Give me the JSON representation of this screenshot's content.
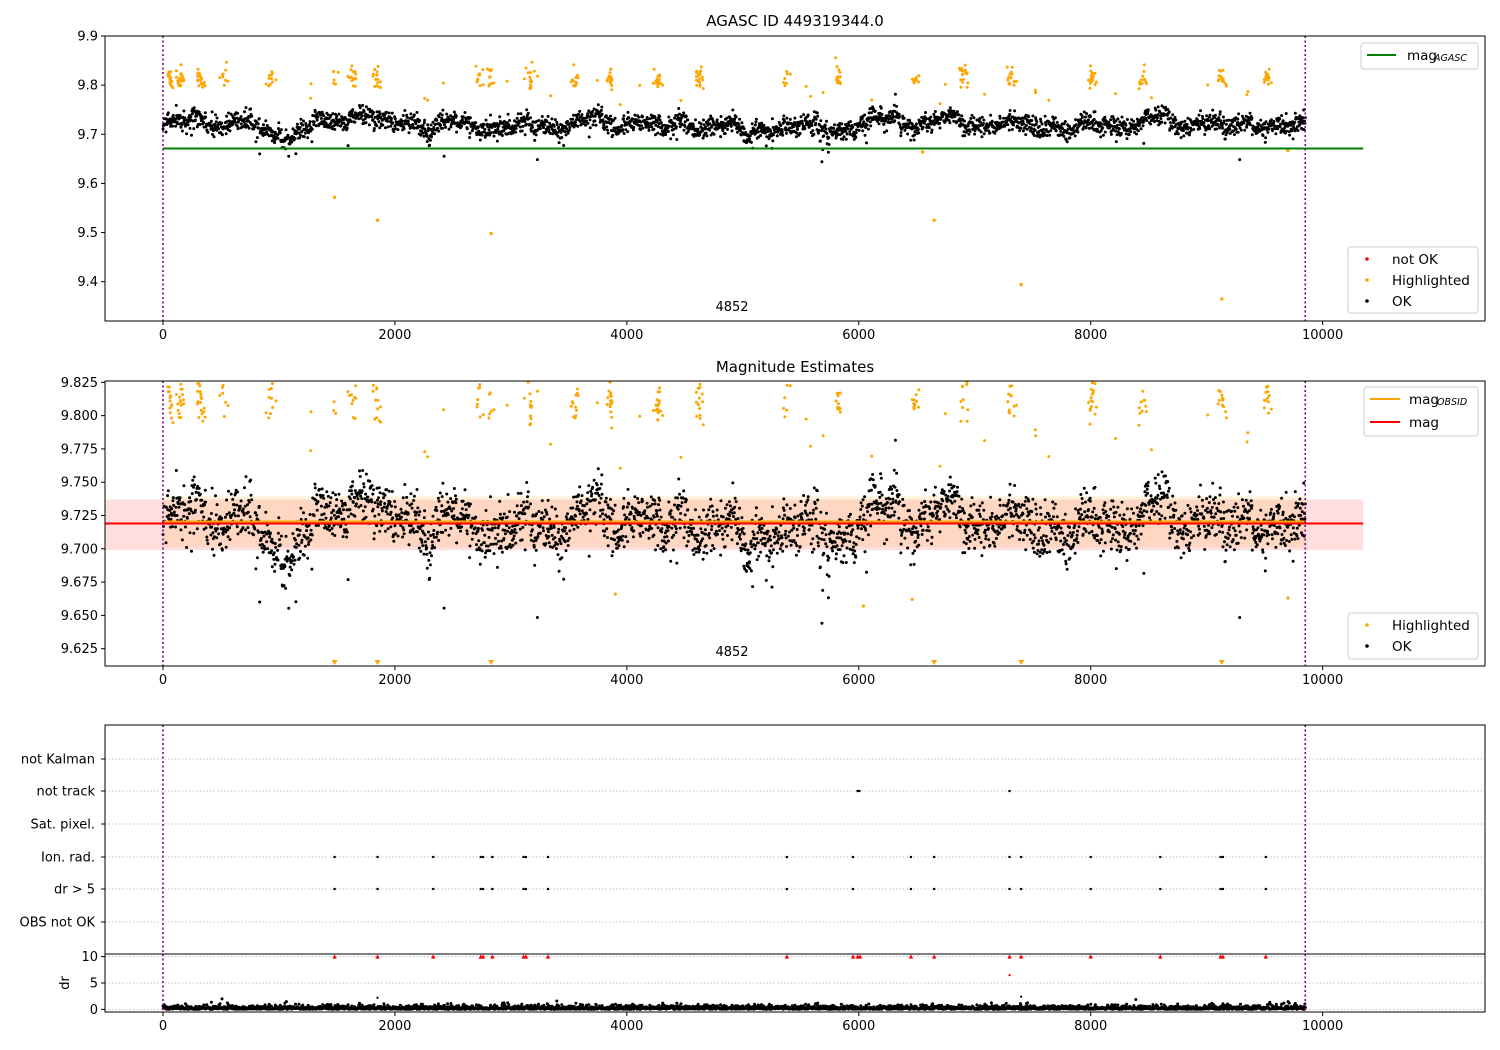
{
  "chart_data": [
    {
      "type": "scatter",
      "title": "AGASC ID 449319344.0",
      "xlim": [
        -500,
        11400
      ],
      "ylim": [
        9.32,
        9.9
      ],
      "xticks": [
        0,
        2000,
        4000,
        6000,
        8000,
        10000
      ],
      "xtick_labels": [
        "0",
        "2000",
        "4000",
        "6000",
        "8000",
        "10000"
      ],
      "yticks": [
        9.4,
        9.5,
        9.6,
        9.7,
        9.8,
        9.9
      ],
      "ytick_labels": [
        "9.4",
        "9.5",
        "9.6",
        "9.7",
        "9.8",
        "9.9"
      ],
      "obsid_boundaries": [
        0,
        9850
      ],
      "obsid_label": "4852",
      "reference_line": {
        "name": "mag",
        "subscript": "AGASC",
        "y": 9.671,
        "x_range": [
          0,
          10350
        ],
        "color": "#008000"
      },
      "series": [
        {
          "name": "not OK",
          "color": "#ff0000",
          "points": []
        },
        {
          "name": "Highlighted",
          "color": "#ffa500",
          "points": [
            [
              1480,
              9.572
            ],
            [
              1850,
              9.525
            ],
            [
              2830,
              9.498
            ],
            [
              6650,
              9.525
            ],
            [
              7400,
              9.394
            ],
            [
              9130,
              9.365
            ],
            [
              6550,
              9.664
            ],
            [
              9700,
              9.667
            ]
          ]
        },
        {
          "name": "OK",
          "color": "#000000",
          "points": []
        }
      ],
      "legend_upper": {
        "position": "top-right",
        "entries": [
          "mag"
        ]
      },
      "legend_lower": {
        "position": "lower-right",
        "entries": [
          "not OK",
          "Highlighted",
          "OK"
        ]
      }
    },
    {
      "type": "scatter",
      "title": "Magnitude Estimates",
      "xlim": [
        -500,
        11400
      ],
      "ylim": [
        9.612,
        9.826
      ],
      "xticks": [
        0,
        2000,
        4000,
        6000,
        8000,
        10000
      ],
      "xtick_labels": [
        "0",
        "2000",
        "4000",
        "6000",
        "8000",
        "10000"
      ],
      "yticks": [
        9.625,
        9.65,
        9.675,
        9.7,
        9.725,
        9.75,
        9.775,
        9.8,
        9.825
      ],
      "ytick_labels": [
        "9.625",
        "9.650",
        "9.675",
        "9.700",
        "9.725",
        "9.750",
        "9.775",
        "9.800",
        "9.825"
      ],
      "obsid_boundaries": [
        0,
        9850
      ],
      "obsid_label": "4852",
      "mag_line": {
        "name": "mag",
        "y": 9.719,
        "band": [
          9.699,
          9.737
        ],
        "x_range": [
          -500,
          10350
        ],
        "color": "#ff0000"
      },
      "mag_obsid_line": {
        "name": "mag",
        "subscript": "OBSID",
        "y": 9.7205,
        "band": [
          9.7015,
          9.7395
        ],
        "x_range": [
          0,
          9850
        ],
        "color": "#ffa500"
      },
      "below_range_markers_x": [
        1480,
        1850,
        2830,
        6650,
        7400,
        9130
      ],
      "series": [
        {
          "name": "Highlighted",
          "color": "#ffa500",
          "points": []
        },
        {
          "name": "OK",
          "color": "#000000",
          "points": []
        }
      ],
      "legend_upper": {
        "position": "top-right",
        "entries": [
          "mag",
          "mag"
        ]
      },
      "legend_lower": {
        "position": "lower-right",
        "entries": [
          "Highlighted",
          "OK"
        ]
      }
    },
    {
      "type": "scatter",
      "title": "",
      "xlim": [
        -500,
        11400
      ],
      "categories": [
        "not Kalman",
        "not track",
        "Sat. pixel.",
        "Ion. rad.",
        "dr > 5",
        "OBS not OK"
      ],
      "flags": {
        "not Kalman": [],
        "not track": [
          5990,
          6005,
          7300
        ],
        "Sat. pixel.": [],
        "Ion. rad.": [
          1480,
          1850,
          2330,
          2740,
          2760,
          2840,
          3110,
          3130,
          3320,
          5380,
          5950,
          6450,
          6650,
          7300,
          7400,
          8000,
          8600,
          9120,
          9140,
          9510
        ],
        "dr > 5": [
          1480,
          1850,
          2330,
          2740,
          2760,
          2840,
          3110,
          3130,
          3320,
          5380,
          5950,
          6450,
          6650,
          7300,
          7400,
          8000,
          8600,
          9120,
          9140,
          9510
        ],
        "OBS not OK": []
      },
      "obsid_boundaries": [
        0,
        9850
      ]
    },
    {
      "type": "scatter",
      "title": "",
      "ylabel": "dr",
      "xlim": [
        -500,
        11400
      ],
      "ylim": [
        -0.5,
        10.5
      ],
      "xticks": [
        0,
        2000,
        4000,
        6000,
        8000,
        10000
      ],
      "xtick_labels": [
        "0",
        "2000",
        "4000",
        "6000",
        "8000",
        "10000"
      ],
      "yticks": [
        0,
        5,
        10
      ],
      "ytick_labels": [
        "0",
        "5",
        "10"
      ],
      "clipped_at_10_x": [
        1480,
        1850,
        2330,
        2740,
        2760,
        2840,
        3110,
        3130,
        3320,
        5380,
        5950,
        5990,
        6010,
        6450,
        6650,
        7300,
        7400,
        8000,
        8600,
        9120,
        9140,
        9510
      ],
      "outliers": [
        [
          7300,
          6.5
        ],
        [
          1850,
          2.2
        ],
        [
          7400,
          2.4
        ]
      ],
      "obsid_boundaries": [
        0,
        9850
      ]
    }
  ]
}
